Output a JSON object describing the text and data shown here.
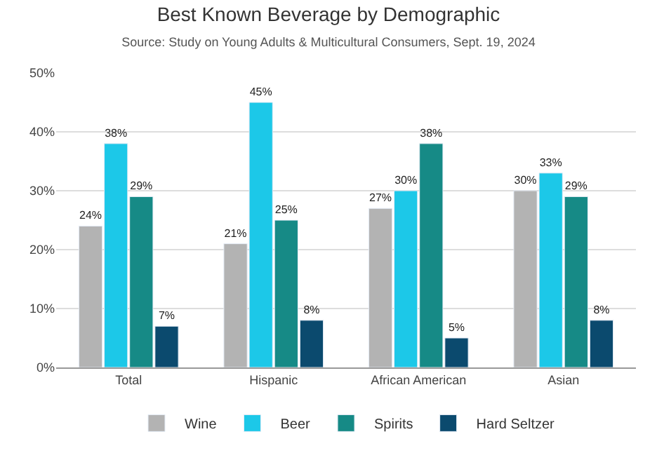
{
  "chart_data": {
    "type": "bar",
    "title": "Best Known Beverage by Demographic",
    "subtitle": "Source: Study on Young Adults & Multicultural Consumers, Sept. 19, 2024",
    "categories": [
      "Total",
      "Hispanic",
      "African American",
      "Asian"
    ],
    "series": [
      {
        "name": "Wine",
        "color": "#b3b3b3",
        "values": [
          24,
          21,
          27,
          30
        ],
        "value_labels": [
          "24%",
          "21%",
          "27%",
          "30%"
        ]
      },
      {
        "name": "Beer",
        "color": "#1cc8e8",
        "values": [
          38,
          45,
          30,
          33
        ],
        "value_labels": [
          "38%",
          "45%",
          "30%",
          "33%"
        ]
      },
      {
        "name": "Spirits",
        "color": "#168a86",
        "values": [
          29,
          25,
          38,
          29
        ],
        "value_labels": [
          "29%",
          "25%",
          "38%",
          "29%"
        ]
      },
      {
        "name": "Hard Seltzer",
        "color": "#0b4a6e",
        "values": [
          7,
          8,
          5,
          8
        ],
        "value_labels": [
          "7%",
          "8%",
          "5%",
          "8%"
        ]
      }
    ],
    "ylim": [
      0,
      50
    ],
    "yticks": [
      {
        "value": 0,
        "label": "0%"
      },
      {
        "value": 10,
        "label": "10%"
      },
      {
        "value": 20,
        "label": "20%"
      },
      {
        "value": 30,
        "label": "30%"
      },
      {
        "value": 40,
        "label": "40%"
      },
      {
        "value": 50,
        "label": "50%"
      }
    ],
    "grid": "y",
    "legend": "bottom"
  }
}
